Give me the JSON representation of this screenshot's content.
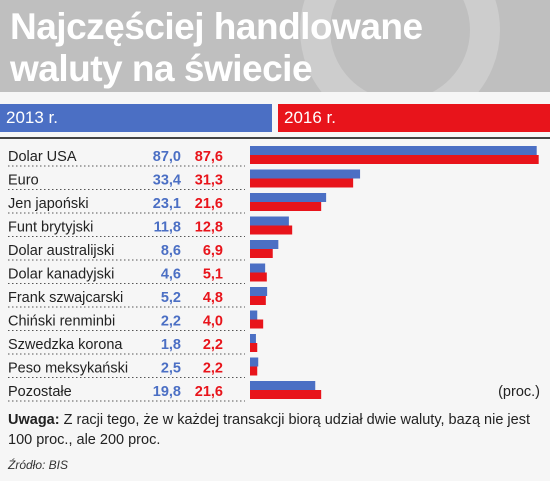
{
  "title": "Najczęściej handlowane waluty na świecie",
  "colors": {
    "series_2013": "#4b6fc4",
    "series_2016": "#e8141b",
    "background": "#f6f6f6",
    "header_bg": "#bfbfbf"
  },
  "chart_data": {
    "type": "bar",
    "title": "Najczęściej handlowane waluty na świecie",
    "categories": [
      "Dolar USA",
      "Euro",
      "Jen japoński",
      "Funt brytyjski",
      "Dolar australijski",
      "Dolar kanadyjski",
      "Frank szwajcarski",
      "Chiński renminbi",
      "Szwedzka korona",
      "Peso meksykański",
      "Pozostałe"
    ],
    "series": [
      {
        "name": "2013 r.",
        "values": [
          87.0,
          33.4,
          23.1,
          11.8,
          8.6,
          4.6,
          5.2,
          2.2,
          1.8,
          2.5,
          19.8
        ],
        "labels": [
          "87,0",
          "33,4",
          "23,1",
          "11,8",
          "8,6",
          "4,6",
          "5,2",
          "2,2",
          "1,8",
          "2,5",
          "19,8"
        ]
      },
      {
        "name": "2016 r.",
        "values": [
          87.6,
          31.3,
          21.6,
          12.8,
          6.9,
          5.1,
          4.8,
          4.0,
          2.2,
          2.2,
          21.6
        ],
        "labels": [
          "87,6",
          "31,3",
          "21,6",
          "12,8",
          "6,9",
          "5,1",
          "4,8",
          "4,0",
          "2,2",
          "2,2",
          "21,6"
        ]
      }
    ],
    "unit_label": "(proc.)",
    "xlim": [
      0,
      88
    ],
    "orientation": "horizontal",
    "grid": false
  },
  "note": {
    "label": "Uwaga:",
    "text": "Z racji tego, że w każdej transakcji biorą udział dwie waluty, bazą nie jest 100 proc., ale 200 proc."
  },
  "source": "Źródło: BIS"
}
